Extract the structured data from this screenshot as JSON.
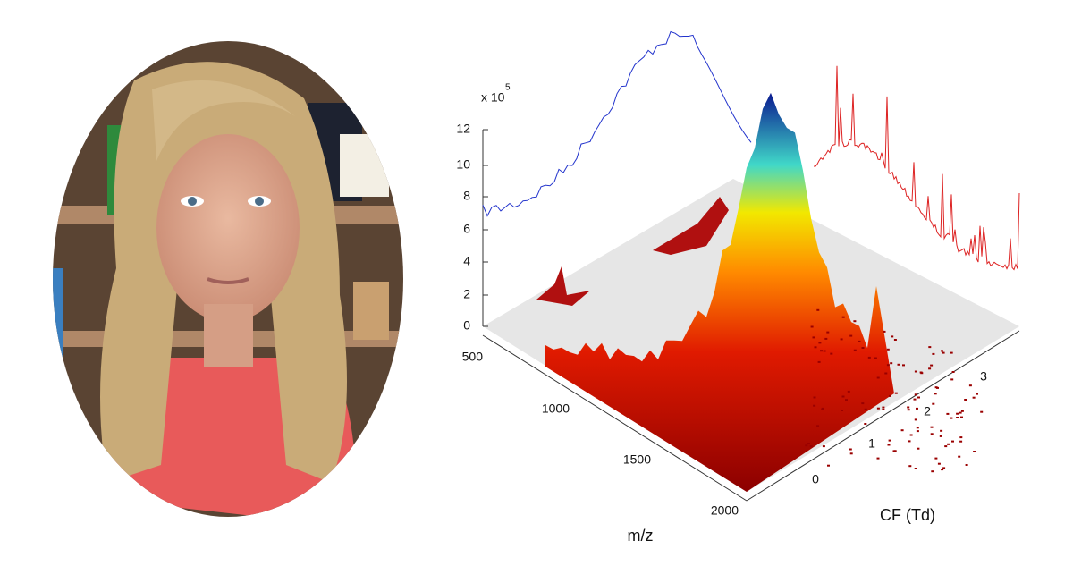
{
  "plot": {
    "z_axis": {
      "multiplier": "x 10",
      "exponent": "5",
      "ticks": [
        "0",
        "2",
        "4",
        "6",
        "8",
        "10",
        "12"
      ]
    },
    "mz_axis": {
      "label": "m/z",
      "ticks": [
        "500",
        "1000",
        "1500",
        "2000"
      ]
    },
    "cf_axis": {
      "label": "CF (Td)",
      "ticks": [
        "0",
        "1",
        "2",
        "3"
      ]
    }
  }
}
